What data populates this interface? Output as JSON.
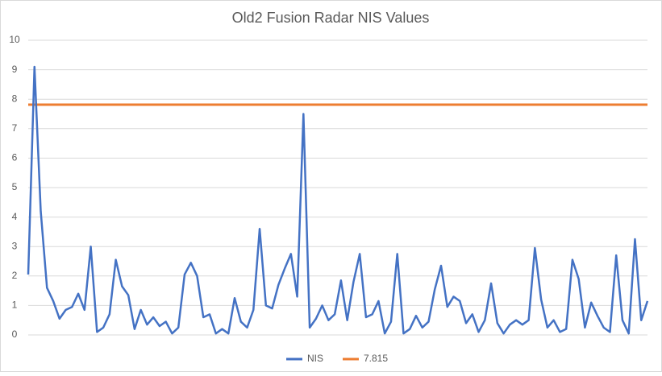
{
  "chart_data": {
    "type": "line",
    "title": "Old2 Fusion Radar NIS Values",
    "ylim": [
      0,
      10
    ],
    "yticks": [
      0,
      1,
      2,
      3,
      4,
      5,
      6,
      7,
      8,
      9,
      10
    ],
    "grid": true,
    "legend": "bottom",
    "series": [
      {
        "name": "NIS",
        "color": "#4472c4",
        "values": [
          2.05,
          9.1,
          4.2,
          1.6,
          1.15,
          0.55,
          0.85,
          0.95,
          1.4,
          0.85,
          3.0,
          0.1,
          0.25,
          0.7,
          2.55,
          1.65,
          1.35,
          0.2,
          0.85,
          0.35,
          0.6,
          0.3,
          0.45,
          0.05,
          0.25,
          2.05,
          2.45,
          2.0,
          0.6,
          0.7,
          0.05,
          0.2,
          0.05,
          1.25,
          0.45,
          0.25,
          0.85,
          3.6,
          1.0,
          0.9,
          1.7,
          2.25,
          2.75,
          1.3,
          7.5,
          0.25,
          0.55,
          1.0,
          0.5,
          0.7,
          1.85,
          0.5,
          1.8,
          2.75,
          0.6,
          0.7,
          1.15,
          0.05,
          0.45,
          2.75,
          0.05,
          0.2,
          0.65,
          0.25,
          0.45,
          1.55,
          2.35,
          0.95,
          1.3,
          1.15,
          0.4,
          0.7,
          0.1,
          0.5,
          1.75,
          0.4,
          0.05,
          0.35,
          0.5,
          0.35,
          0.5,
          2.95,
          1.2,
          0.25,
          0.5,
          0.1,
          0.2,
          2.55,
          1.9,
          0.25,
          1.1,
          0.65,
          0.25,
          0.1,
          2.7,
          0.5,
          0.05,
          3.25,
          0.5,
          1.15
        ]
      },
      {
        "name": "7.815",
        "color": "#ed7d31",
        "values": [
          7.815,
          7.815,
          7.815,
          7.815,
          7.815,
          7.815,
          7.815,
          7.815,
          7.815,
          7.815,
          7.815,
          7.815,
          7.815,
          7.815,
          7.815,
          7.815,
          7.815,
          7.815,
          7.815,
          7.815,
          7.815,
          7.815,
          7.815,
          7.815,
          7.815,
          7.815,
          7.815,
          7.815,
          7.815,
          7.815,
          7.815,
          7.815,
          7.815,
          7.815,
          7.815,
          7.815,
          7.815,
          7.815,
          7.815,
          7.815,
          7.815,
          7.815,
          7.815,
          7.815,
          7.815,
          7.815,
          7.815,
          7.815,
          7.815,
          7.815,
          7.815,
          7.815,
          7.815,
          7.815,
          7.815,
          7.815,
          7.815,
          7.815,
          7.815,
          7.815,
          7.815,
          7.815,
          7.815,
          7.815,
          7.815,
          7.815,
          7.815,
          7.815,
          7.815,
          7.815,
          7.815,
          7.815,
          7.815,
          7.815,
          7.815,
          7.815,
          7.815,
          7.815,
          7.815,
          7.815,
          7.815,
          7.815,
          7.815,
          7.815,
          7.815,
          7.815,
          7.815,
          7.815,
          7.815,
          7.815,
          7.815,
          7.815,
          7.815,
          7.815,
          7.815,
          7.815,
          7.815,
          7.815,
          7.815,
          7.815
        ]
      }
    ]
  }
}
